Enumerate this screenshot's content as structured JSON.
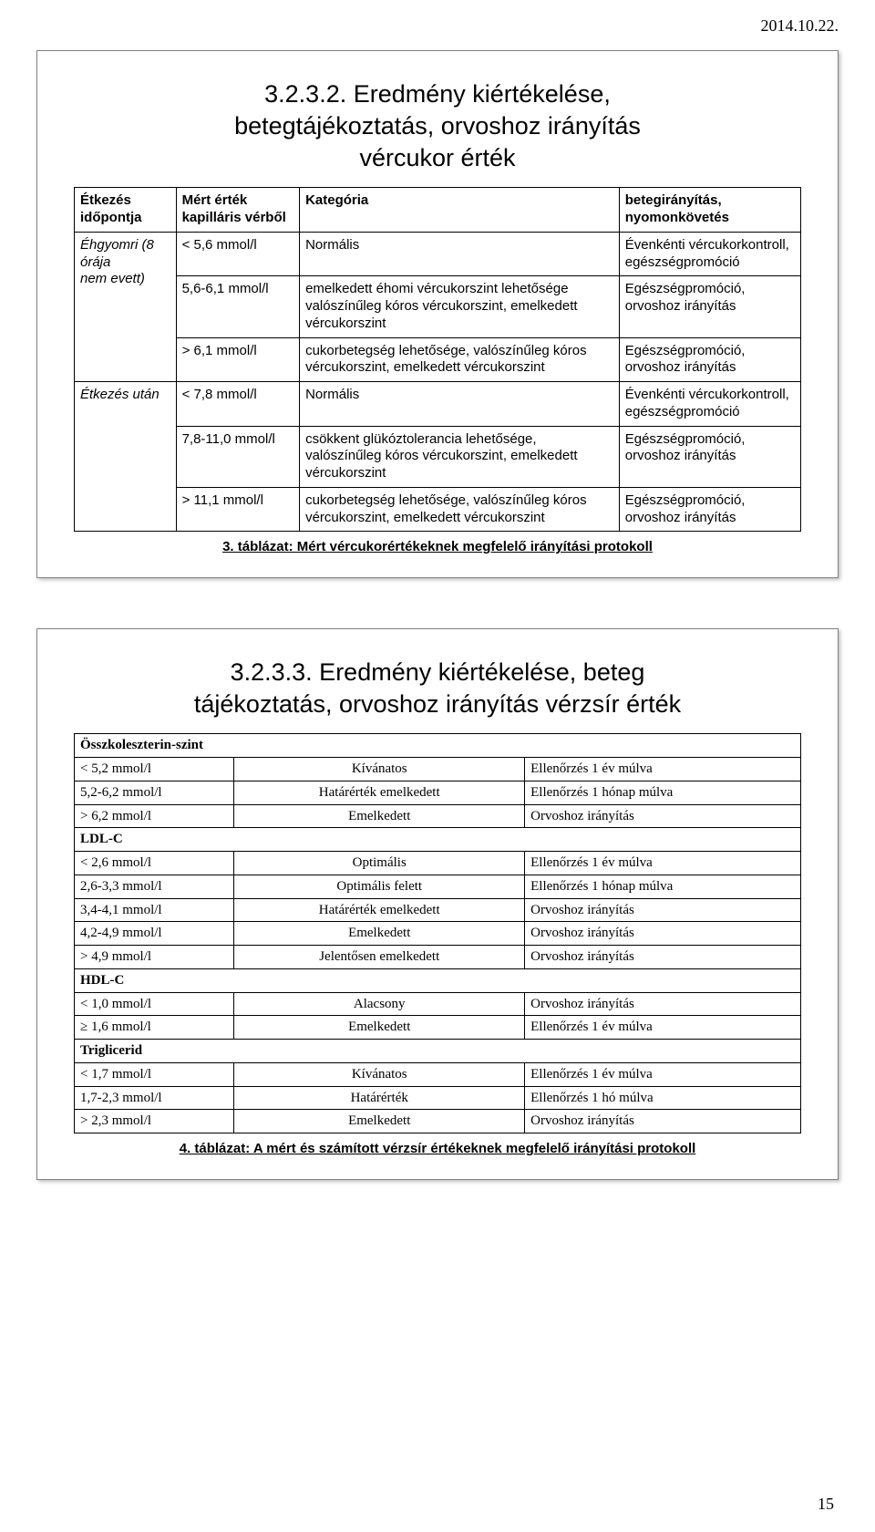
{
  "header_date": "2014.10.22.",
  "page_number": "15",
  "panel1": {
    "title_line1": "3.2.3.2. Eredmény kiértékelése,",
    "title_line2": "betegtájékoztatás, orvoshoz irányítás",
    "title_line3": "vércukor érték",
    "headers": {
      "c1a": "Étkezés",
      "c1b": "időpontja",
      "c2a": "Mért érték",
      "c2b": "kapilláris vérből",
      "c3": "Kategória",
      "c4a": "betegirányítás,",
      "c4b": "nyomonkövetés"
    },
    "rows": [
      {
        "c1a": "Éhgyomri (8 órája",
        "c1b": "nem evett)",
        "c2": "< 5,6 mmol/l",
        "c3": "Normális",
        "c4": "Évenkénti vércukorkontroll, egészségpromóció"
      },
      {
        "c1": "",
        "c2": "5,6-6,1 mmol/l",
        "c3": "emelkedett éhomi vércukorszint lehetősége valószínűleg kóros vércukorszint, emelkedett vércukorszint",
        "c4": "Egészségpromóció, orvoshoz irányítás"
      },
      {
        "c1": "",
        "c2": "> 6,1 mmol/l",
        "c3": "cukorbetegség lehetősége, valószínűleg kóros vércukorszint, emelkedett vércukorszint",
        "c4": "Egészségpromóció, orvoshoz irányítás"
      },
      {
        "c1": "Étkezés után",
        "c2": "< 7,8 mmol/l",
        "c3": "Normális",
        "c4": "Évenkénti vércukorkontroll, egészségpromóció"
      },
      {
        "c1": "",
        "c2": "7,8-11,0 mmol/l",
        "c3": "csökkent glükóztolerancia lehetősége, valószínűleg kóros vércukorszint, emelkedett vércukorszint",
        "c4": "Egészségpromóció, orvoshoz irányítás"
      },
      {
        "c1": "",
        "c2": "> 11,1 mmol/l",
        "c3": "cukorbetegség lehetősége, valószínűleg kóros vércukorszint, emelkedett vércukorszint",
        "c4": "Egészségpromóció, orvoshoz irányítás"
      }
    ],
    "caption": "3. táblázat: Mért vércukorértékeknek megfelelő irányítási protokoll"
  },
  "panel2": {
    "title_line1": "3.2.3.3. Eredmény kiértékelése, beteg",
    "title_line2": "tájékoztatás, orvoshoz irányítás vérzsír érték",
    "sections": [
      {
        "header": "Összkoleszterin-szint",
        "rows": [
          {
            "c1": "< 5,2 mmol/l",
            "c2": "Kívánatos",
            "c3": "Ellenőrzés 1 év múlva"
          },
          {
            "c1": "5,2-6,2 mmol/l",
            "c2": "Határérték emelkedett",
            "c3": "Ellenőrzés 1 hónap múlva"
          },
          {
            "c1": "> 6,2 mmol/l",
            "c2": "Emelkedett",
            "c3": "Orvoshoz irányítás"
          }
        ]
      },
      {
        "header": "LDL-C",
        "rows": [
          {
            "c1": "< 2,6 mmol/l",
            "c2": "Optimális",
            "c3": "Ellenőrzés 1 év múlva"
          },
          {
            "c1": "2,6-3,3 mmol/l",
            "c2": "Optimális felett",
            "c3": "Ellenőrzés 1 hónap múlva"
          },
          {
            "c1": "3,4-4,1 mmol/l",
            "c2": "Határérték emelkedett",
            "c3": "Orvoshoz irányítás"
          },
          {
            "c1": "4,2-4,9 mmol/l",
            "c2": "Emelkedett",
            "c3": "Orvoshoz irányítás"
          },
          {
            "c1": "> 4,9 mmol/l",
            "c2": "Jelentősen emelkedett",
            "c3": "Orvoshoz irányítás"
          }
        ]
      },
      {
        "header": "HDL-C",
        "rows": [
          {
            "c1": "< 1,0  mmol/l",
            "c2": "Alacsony",
            "c3": "Orvoshoz irányítás"
          },
          {
            "c1": "≥ 1,6 mmol/l",
            "c2": "Emelkedett",
            "c3": "Ellenőrzés 1 év múlva"
          }
        ]
      },
      {
        "header": "Triglicerid",
        "rows": [
          {
            "c1": "< 1,7 mmol/l",
            "c2": "Kívánatos",
            "c3": "Ellenőrzés 1 év múlva"
          },
          {
            "c1": "1,7-2,3 mmol/l",
            "c2": "Határérték",
            "c3": "Ellenőrzés 1 hó múlva"
          },
          {
            "c1": "> 2,3 mmol/l",
            "c2": "Emelkedett",
            "c3": "Orvoshoz irányítás"
          }
        ]
      }
    ],
    "caption": "4. táblázat: A mért és számított vérzsír értékeknek megfelelő irányítási protokoll"
  }
}
